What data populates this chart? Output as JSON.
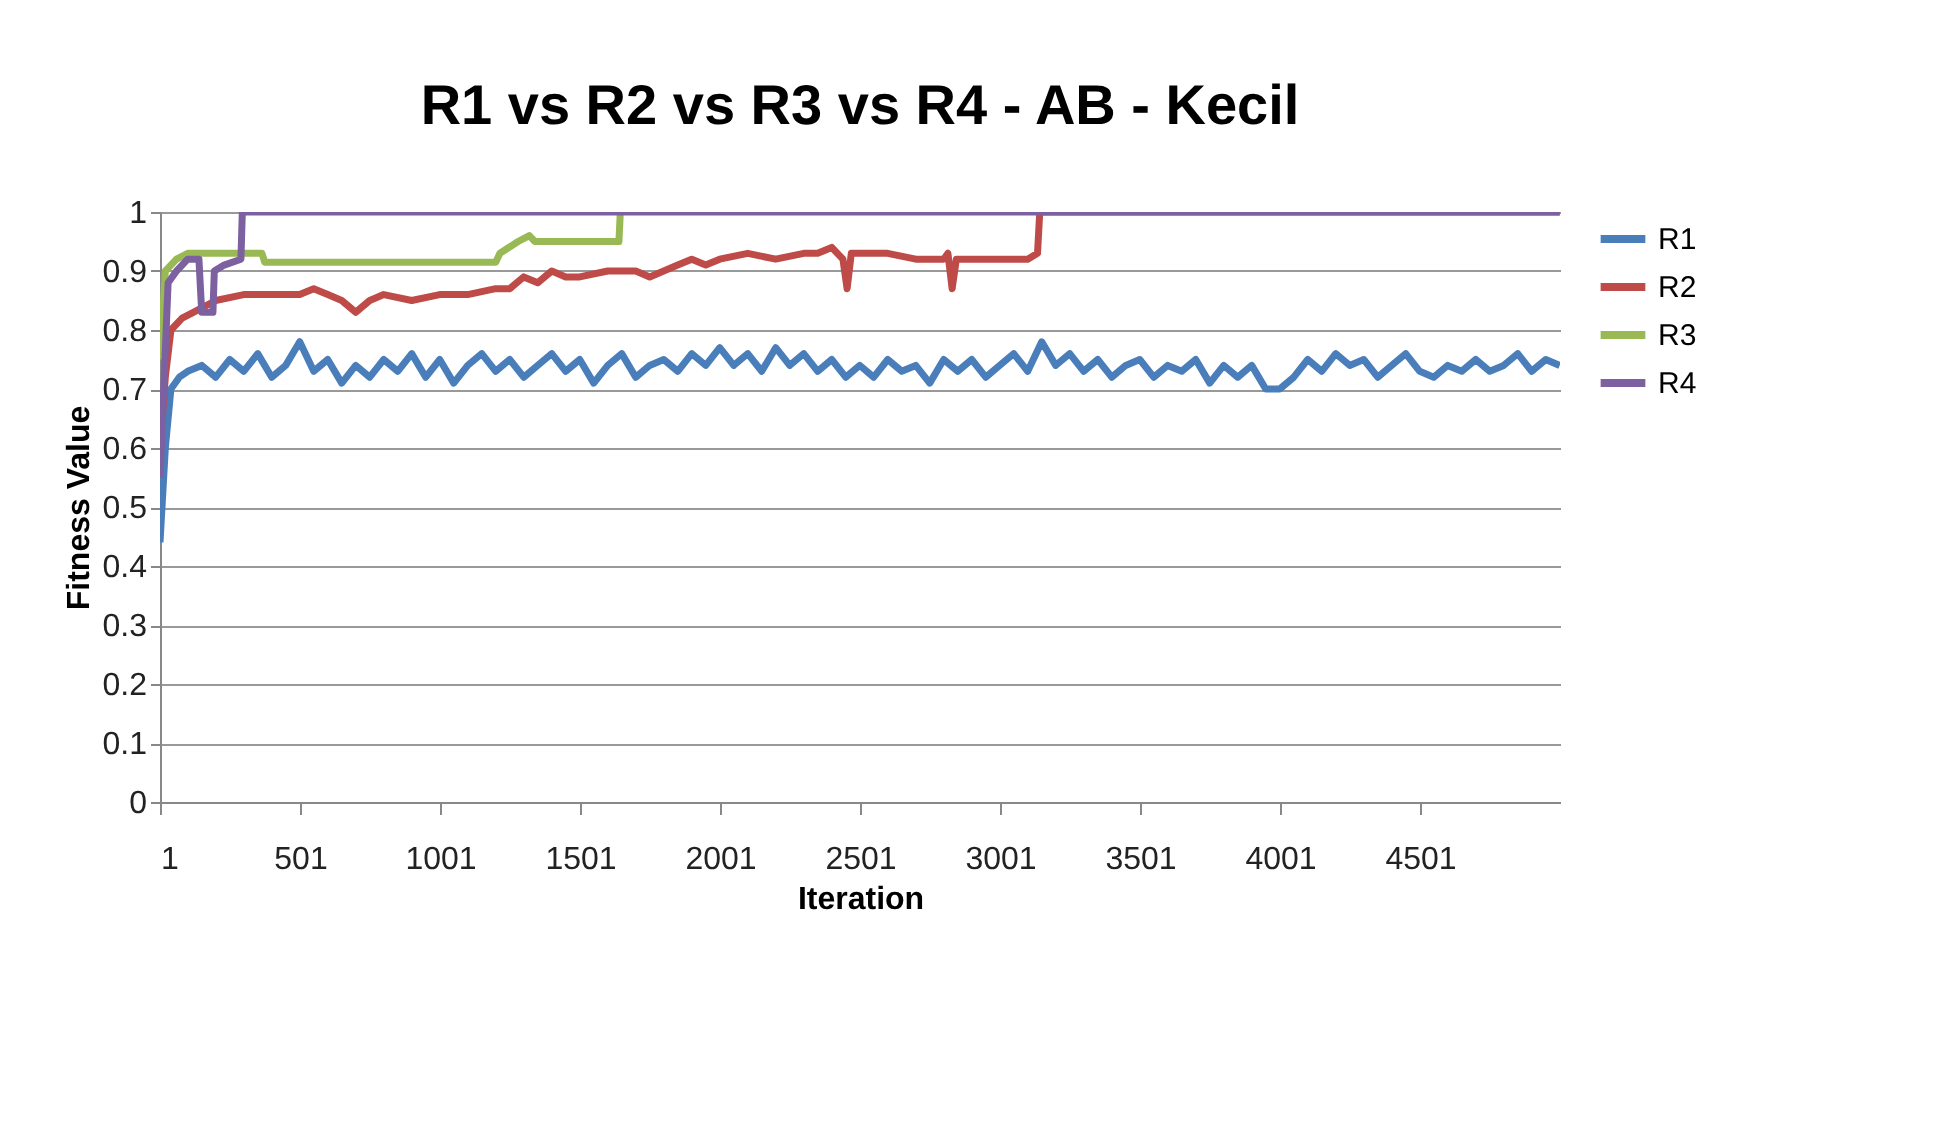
{
  "chart_data": {
    "type": "line",
    "title": "R1 vs R2 vs R3 vs R4 - AB - Kecil",
    "xlabel": "Iteration",
    "ylabel": "Fitness Value",
    "xlim": [
      1,
      5001
    ],
    "xticks": [
      1,
      501,
      1001,
      1501,
      2001,
      2501,
      3001,
      3501,
      4001,
      4501
    ],
    "ylim": [
      0,
      1
    ],
    "yticks": [
      0,
      0.1,
      0.2,
      0.3,
      0.4,
      0.5,
      0.6,
      0.7,
      0.8,
      0.9,
      1
    ],
    "grid": "y",
    "legend": "right",
    "marker": "none",
    "line_style": "solid",
    "series": [
      {
        "name": "R1",
        "color": "#4a7ebb",
        "x": [
          1,
          20,
          40,
          70,
          100,
          150,
          200,
          250,
          300,
          350,
          400,
          450,
          500,
          550,
          600,
          650,
          700,
          750,
          800,
          850,
          900,
          950,
          1000,
          1050,
          1100,
          1150,
          1200,
          1250,
          1300,
          1350,
          1400,
          1450,
          1500,
          1550,
          1600,
          1650,
          1700,
          1750,
          1800,
          1850,
          1900,
          1950,
          2000,
          2050,
          2100,
          2150,
          2200,
          2250,
          2300,
          2350,
          2400,
          2450,
          2500,
          2550,
          2600,
          2650,
          2700,
          2750,
          2800,
          2850,
          2900,
          2950,
          3000,
          3050,
          3100,
          3150,
          3200,
          3250,
          3300,
          3350,
          3400,
          3450,
          3500,
          3550,
          3600,
          3650,
          3700,
          3750,
          3800,
          3850,
          3900,
          3950,
          4000,
          4050,
          4100,
          4150,
          4200,
          4250,
          4300,
          4350,
          4400,
          4450,
          4500,
          4550,
          4600,
          4650,
          4700,
          4750,
          4800,
          4850,
          4900,
          4950,
          5000
        ],
        "values": [
          0.44,
          0.6,
          0.7,
          0.72,
          0.73,
          0.74,
          0.72,
          0.75,
          0.73,
          0.76,
          0.72,
          0.74,
          0.78,
          0.73,
          0.75,
          0.71,
          0.74,
          0.72,
          0.75,
          0.73,
          0.76,
          0.72,
          0.75,
          0.71,
          0.74,
          0.76,
          0.73,
          0.75,
          0.72,
          0.74,
          0.76,
          0.73,
          0.75,
          0.71,
          0.74,
          0.76,
          0.72,
          0.74,
          0.75,
          0.73,
          0.76,
          0.74,
          0.77,
          0.74,
          0.76,
          0.73,
          0.77,
          0.74,
          0.76,
          0.73,
          0.75,
          0.72,
          0.74,
          0.72,
          0.75,
          0.73,
          0.74,
          0.71,
          0.75,
          0.73,
          0.75,
          0.72,
          0.74,
          0.76,
          0.73,
          0.78,
          0.74,
          0.76,
          0.73,
          0.75,
          0.72,
          0.74,
          0.75,
          0.72,
          0.74,
          0.73,
          0.75,
          0.71,
          0.74,
          0.72,
          0.74,
          0.7,
          0.7,
          0.72,
          0.75,
          0.73,
          0.76,
          0.74,
          0.75,
          0.72,
          0.74,
          0.76,
          0.73,
          0.72,
          0.74,
          0.73,
          0.75,
          0.73,
          0.74,
          0.76,
          0.73,
          0.75,
          0.74
        ]
      },
      {
        "name": "R2",
        "color": "#be4b48",
        "x": [
          1,
          20,
          40,
          80,
          120,
          200,
          300,
          400,
          500,
          550,
          600,
          650,
          700,
          750,
          800,
          900,
          1000,
          1100,
          1200,
          1250,
          1300,
          1350,
          1400,
          1450,
          1500,
          1600,
          1700,
          1750,
          1800,
          1850,
          1900,
          1950,
          2000,
          2100,
          2200,
          2300,
          2350,
          2400,
          2440,
          2455,
          2470,
          2600,
          2700,
          2800,
          2815,
          2830,
          2845,
          3000,
          3100,
          3135,
          3143,
          5000
        ],
        "values": [
          0.6,
          0.72,
          0.8,
          0.82,
          0.83,
          0.85,
          0.86,
          0.86,
          0.86,
          0.87,
          0.86,
          0.85,
          0.83,
          0.85,
          0.86,
          0.85,
          0.86,
          0.86,
          0.87,
          0.87,
          0.89,
          0.88,
          0.9,
          0.89,
          0.89,
          0.9,
          0.9,
          0.89,
          0.9,
          0.91,
          0.92,
          0.91,
          0.92,
          0.93,
          0.92,
          0.93,
          0.93,
          0.94,
          0.92,
          0.87,
          0.93,
          0.93,
          0.92,
          0.92,
          0.93,
          0.87,
          0.92,
          0.92,
          0.92,
          0.93,
          1,
          1
        ]
      },
      {
        "name": "R3",
        "color": "#98b954",
        "x": [
          1,
          20,
          60,
          100,
          250,
          365,
          375,
          1200,
          1215,
          1280,
          1320,
          1340,
          1640,
          1645
        ],
        "values": [
          0.75,
          0.9,
          0.92,
          0.93,
          0.93,
          0.93,
          0.915,
          0.915,
          0.93,
          0.95,
          0.96,
          0.95,
          0.95,
          1
        ]
      },
      {
        "name": "R4",
        "color": "#7d60a0",
        "x": [
          1,
          30,
          60,
          100,
          140,
          150,
          190,
          195,
          230,
          290,
          295,
          5000
        ],
        "values": [
          0.55,
          0.88,
          0.9,
          0.92,
          0.92,
          0.83,
          0.83,
          0.9,
          0.91,
          0.92,
          1,
          1
        ]
      }
    ]
  }
}
